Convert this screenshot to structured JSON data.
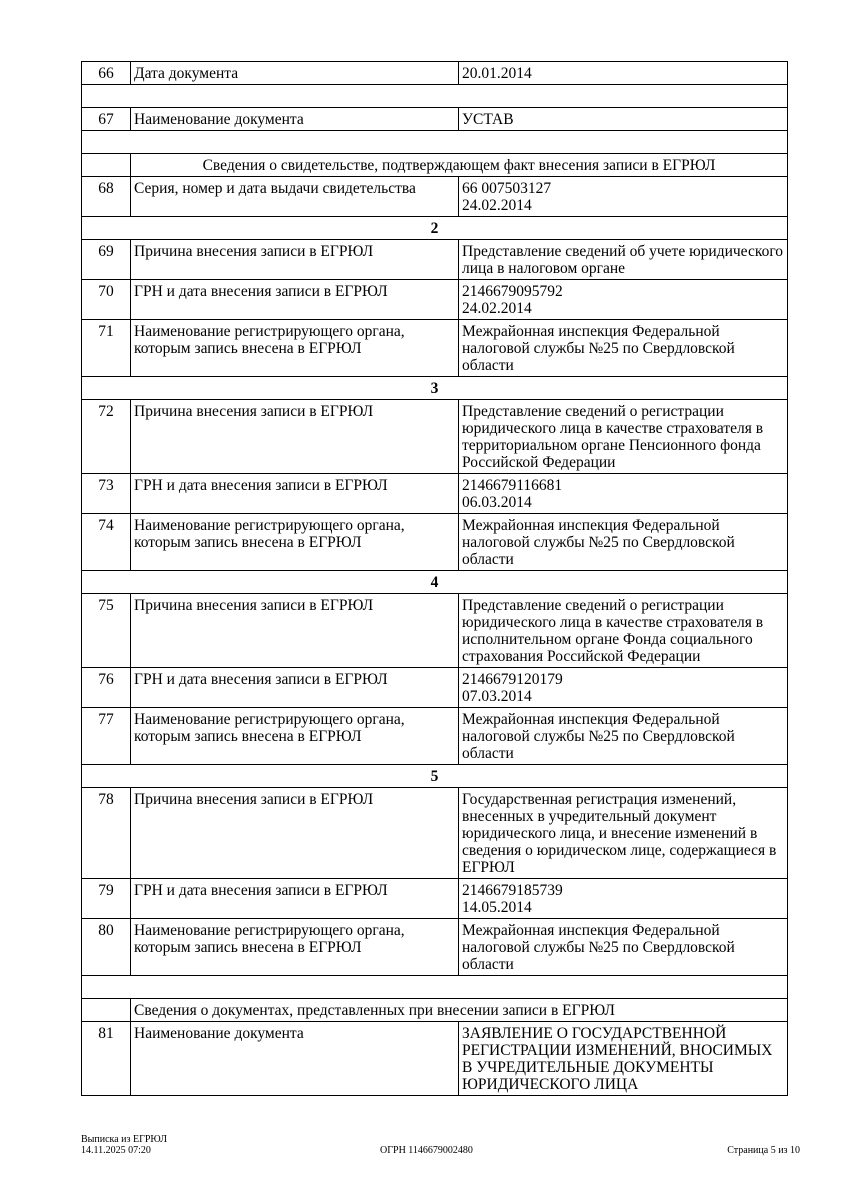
{
  "rows": [
    {
      "type": "item",
      "num": "66",
      "label": "Дата документа",
      "value": [
        "20.01.2014"
      ]
    },
    {
      "type": "empty"
    },
    {
      "type": "item",
      "num": "67",
      "label": "Наименование документа",
      "value": [
        "УСТАВ"
      ]
    },
    {
      "type": "empty"
    },
    {
      "type": "header",
      "align": "center",
      "text": "Сведения о свидетельстве, подтверждающем факт внесения записи в ЕГРЮЛ"
    },
    {
      "type": "item",
      "num": "68",
      "label": "Серия, номер и дата выдачи свидетельства",
      "value": [
        "66 007503127",
        "24.02.2014"
      ]
    },
    {
      "type": "section",
      "text": "2"
    },
    {
      "type": "item",
      "num": "69",
      "label": "Причина внесения записи в ЕГРЮЛ",
      "value": [
        "Представление сведений об учете юридического лица в налоговом органе"
      ]
    },
    {
      "type": "item",
      "num": "70",
      "label": "ГРН и дата внесения записи в ЕГРЮЛ",
      "value": [
        "2146679095792",
        "24.02.2014"
      ]
    },
    {
      "type": "item",
      "num": "71",
      "label": "Наименование регистрирующего органа, которым запись внесена в ЕГРЮЛ",
      "value": [
        "Межрайонная инспекция Федеральной налоговой службы №25 по Свердловской области"
      ]
    },
    {
      "type": "section",
      "text": "3"
    },
    {
      "type": "item",
      "num": "72",
      "label": "Причина внесения записи в ЕГРЮЛ",
      "value": [
        "Представление сведений о регистрации юридического лица в качестве страхователя в территориальном органе Пенсионного фонда Российской Федерации"
      ]
    },
    {
      "type": "item",
      "num": "73",
      "label": "ГРН и дата внесения записи в ЕГРЮЛ",
      "value": [
        "2146679116681",
        "06.03.2014"
      ]
    },
    {
      "type": "item",
      "num": "74",
      "label": "Наименование регистрирующего органа, которым запись внесена в ЕГРЮЛ",
      "value": [
        "Межрайонная инспекция Федеральной налоговой службы №25 по Свердловской области"
      ]
    },
    {
      "type": "section",
      "text": "4"
    },
    {
      "type": "item",
      "num": "75",
      "label": "Причина внесения записи в ЕГРЮЛ",
      "value": [
        "Представление сведений о регистрации юридического лица в качестве страхователя в исполнительном органе Фонда социального страхования Российской Федерации"
      ]
    },
    {
      "type": "item",
      "num": "76",
      "label": "ГРН и дата внесения записи в ЕГРЮЛ",
      "value": [
        "2146679120179",
        "07.03.2014"
      ]
    },
    {
      "type": "item",
      "num": "77",
      "label": "Наименование регистрирующего органа, которым запись внесена в ЕГРЮЛ",
      "value": [
        "Межрайонная инспекция Федеральной налоговой службы №25 по Свердловской области"
      ]
    },
    {
      "type": "section",
      "text": "5"
    },
    {
      "type": "item",
      "num": "78",
      "label": "Причина внесения записи в ЕГРЮЛ",
      "value": [
        "Государственная регистрация изменений, внесенных в учредительный документ юридического лица, и внесение изменений в сведения о юридическом лице, содержащиеся в ЕГРЮЛ"
      ]
    },
    {
      "type": "item",
      "num": "79",
      "label": "ГРН и дата внесения записи в ЕГРЮЛ",
      "value": [
        "2146679185739",
        "14.05.2014"
      ]
    },
    {
      "type": "item",
      "num": "80",
      "label": "Наименование регистрирующего органа, которым запись внесена в ЕГРЮЛ",
      "value": [
        "Межрайонная инспекция Федеральной налоговой службы №25 по Свердловской области"
      ]
    },
    {
      "type": "empty"
    },
    {
      "type": "header",
      "align": "left",
      "text": "Сведения о документах, представленных при внесении записи в ЕГРЮЛ"
    },
    {
      "type": "item",
      "num": "81",
      "label": "Наименование документа",
      "value": [
        "ЗАЯВЛЕНИЕ О ГОСУДАРСТВЕННОЙ РЕГИСТРАЦИИ ИЗМЕНЕНИЙ, ВНОСИМЫХ В УЧРЕДИТЕЛЬНЫЕ ДОКУМЕНТЫ  ЮРИДИЧЕСКОГО ЛИЦА"
      ]
    }
  ],
  "footer": {
    "doc_title": "Выписка из ЕГРЮЛ",
    "datetime": "14.11.2025 07:20",
    "ogrn": "ОГРН 1146679002480",
    "page": "Страница 5 из 10"
  }
}
